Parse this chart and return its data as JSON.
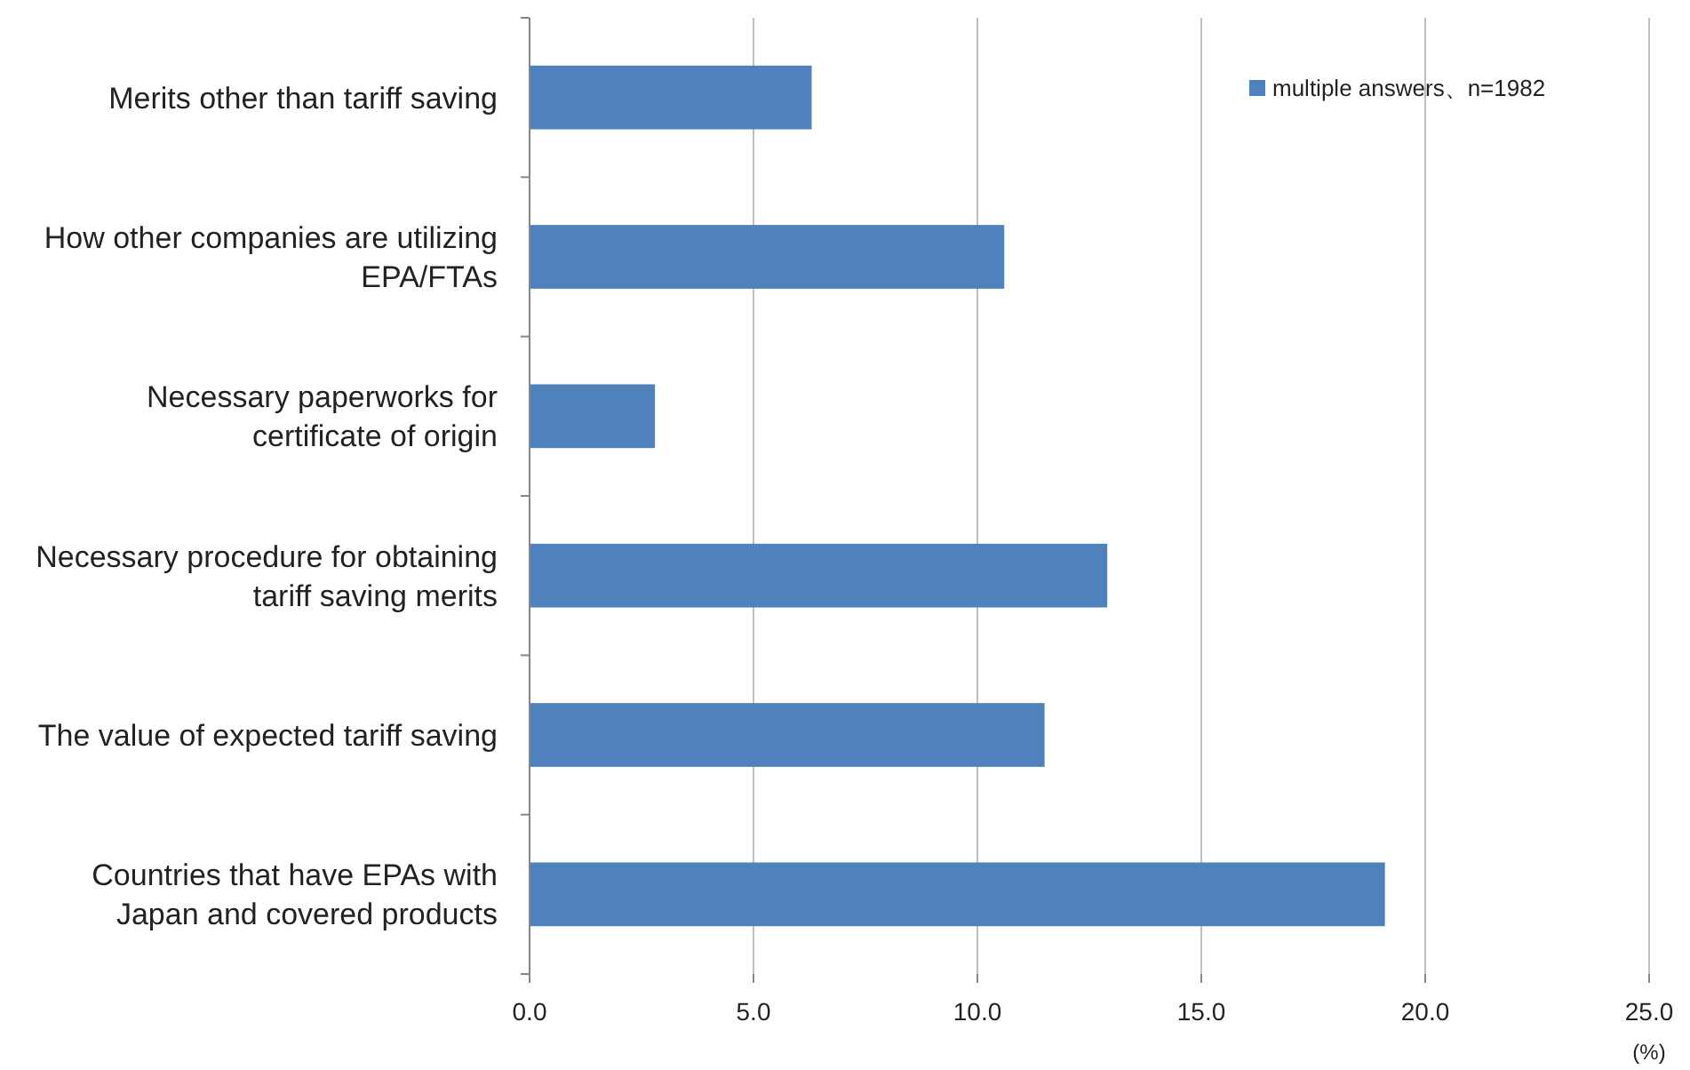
{
  "chart_data": {
    "type": "bar",
    "orientation": "horizontal",
    "xlabel": "(%)",
    "categories": [
      "Merits other than tariff saving",
      "How other companies are utilizing EPA/FTAs",
      "Necessary paperworks for certificate of origin",
      "Necessary procedure for obtaining tariff saving merits",
      "The value of expected tariff saving",
      "Countries that have EPAs with Japan and covered products"
    ],
    "series": [
      {
        "name": "multiple answers、n=1982",
        "color": "#4f81bd",
        "values": [
          6.3,
          10.6,
          2.8,
          12.9,
          11.5,
          19.1
        ]
      }
    ],
    "xlim": [
      0,
      25
    ],
    "xticks": [
      {
        "value": 0,
        "label": "0.0"
      },
      {
        "value": 5,
        "label": "5.0"
      },
      {
        "value": 10,
        "label": "10.0"
      },
      {
        "value": 15,
        "label": "15.0"
      },
      {
        "value": 20,
        "label": "20.0"
      },
      {
        "value": 25,
        "label": "25.0"
      }
    ],
    "grid": "x",
    "legend": "top right"
  }
}
